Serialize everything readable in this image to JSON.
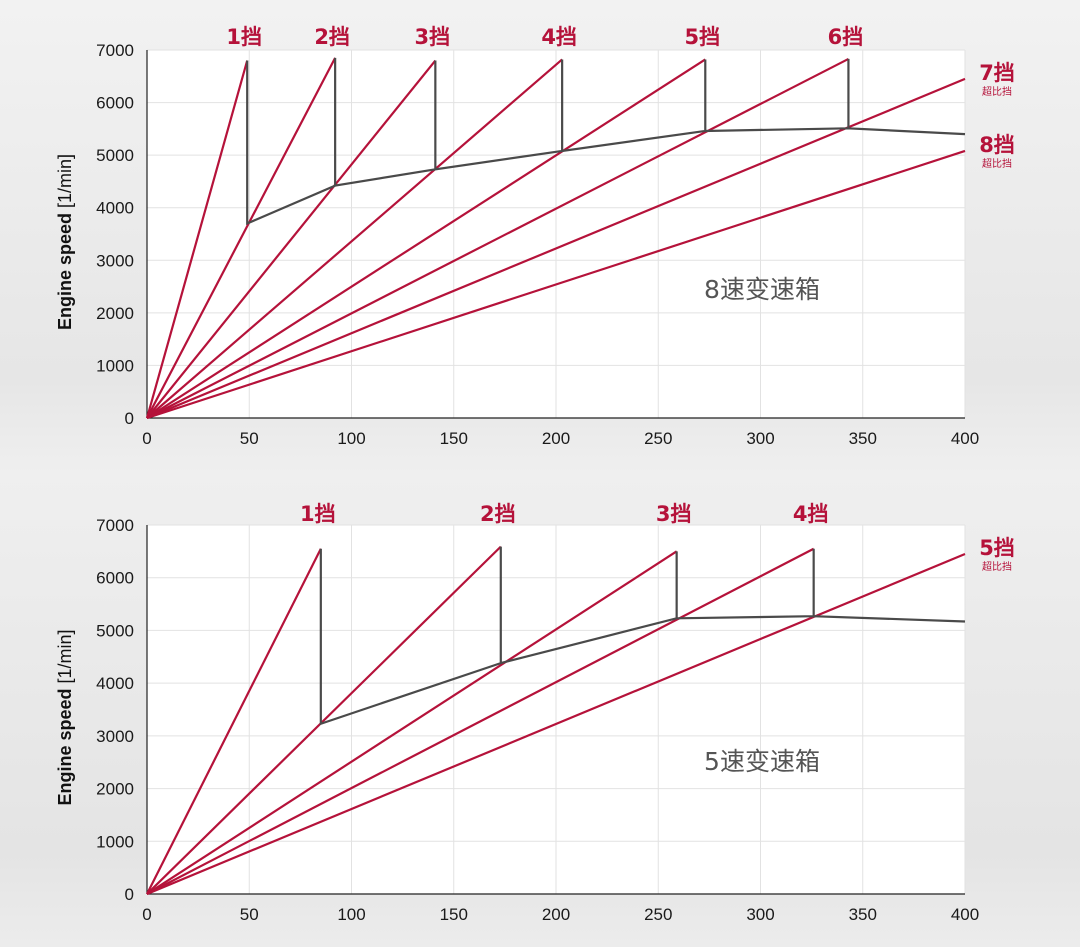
{
  "chart_data": [
    {
      "type": "line",
      "annotation": "8速变速箱",
      "ylabel": "Engine speed",
      "ylabel_unit": "[1/min]",
      "xlim": [
        0,
        400
      ],
      "ylim": [
        0,
        7000
      ],
      "x_ticks": [
        0,
        50,
        100,
        150,
        200,
        250,
        300,
        350,
        400
      ],
      "y_ticks": [
        0,
        1000,
        2000,
        3000,
        4000,
        5000,
        6000,
        7000
      ],
      "grid": true,
      "gear_lines": [
        {
          "label": "1挡",
          "sub": "",
          "end": [
            49,
            6800
          ],
          "peak_x": 49,
          "peak_y": 6800
        },
        {
          "label": "2挡",
          "sub": "",
          "end": [
            92,
            6850
          ],
          "peak_x": 92,
          "peak_y": 6850
        },
        {
          "label": "3挡",
          "sub": "",
          "end": [
            141,
            6800
          ],
          "peak_x": 141,
          "peak_y": 6800
        },
        {
          "label": "4挡",
          "sub": "",
          "end": [
            203,
            6820
          ],
          "peak_x": 203,
          "peak_y": 6820
        },
        {
          "label": "5挡",
          "sub": "",
          "end": [
            273,
            6820
          ],
          "peak_x": 273,
          "peak_y": 6820
        },
        {
          "label": "6挡",
          "sub": "",
          "end": [
            343,
            6830
          ],
          "peak_x": 343,
          "peak_y": 6830
        },
        {
          "label": "7挡",
          "sub": "超比挡",
          "end": [
            400,
            6450
          ]
        },
        {
          "label": "8挡",
          "sub": "超比挡",
          "end": [
            400,
            5080
          ]
        }
      ],
      "shift_curve": [
        [
          49,
          6800
        ],
        [
          49,
          3700
        ],
        [
          92,
          4420
        ],
        [
          92,
          6850
        ],
        [
          92,
          4420
        ],
        [
          141,
          4730
        ],
        [
          141,
          6800
        ],
        [
          141,
          4730
        ],
        [
          203,
          5080
        ],
        [
          203,
          6820
        ],
        [
          203,
          5080
        ],
        [
          273,
          5460
        ],
        [
          273,
          6820
        ],
        [
          273,
          5460
        ],
        [
          343,
          5510
        ],
        [
          343,
          6830
        ],
        [
          343,
          5510
        ],
        [
          400,
          5400
        ]
      ]
    },
    {
      "type": "line",
      "annotation": "5速变速箱",
      "ylabel": "Engine speed",
      "ylabel_unit": "[1/min]",
      "xlim": [
        0,
        400
      ],
      "ylim": [
        0,
        7000
      ],
      "x_ticks": [
        0,
        50,
        100,
        150,
        200,
        250,
        300,
        350,
        400
      ],
      "y_ticks": [
        0,
        1000,
        2000,
        3000,
        4000,
        5000,
        6000,
        7000
      ],
      "grid": true,
      "gear_lines": [
        {
          "label": "1挡",
          "sub": "",
          "end": [
            85,
            6550
          ],
          "peak_x": 85,
          "peak_y": 6550
        },
        {
          "label": "2挡",
          "sub": "",
          "end": [
            173,
            6590
          ],
          "peak_x": 173,
          "peak_y": 6590
        },
        {
          "label": "3挡",
          "sub": "",
          "end": [
            259,
            6500
          ],
          "peak_x": 259,
          "peak_y": 6500
        },
        {
          "label": "4挡",
          "sub": "",
          "end": [
            326,
            6550
          ],
          "peak_x": 326,
          "peak_y": 6550
        },
        {
          "label": "5挡",
          "sub": "超比挡",
          "end": [
            400,
            6450
          ]
        }
      ],
      "shift_curve": [
        [
          85,
          6550
        ],
        [
          85,
          3230
        ],
        [
          173,
          4380
        ],
        [
          173,
          6590
        ],
        [
          173,
          4380
        ],
        [
          259,
          5230
        ],
        [
          259,
          6500
        ],
        [
          259,
          5230
        ],
        [
          326,
          5270
        ],
        [
          326,
          6550
        ],
        [
          326,
          5270
        ],
        [
          400,
          5170
        ]
      ]
    }
  ]
}
